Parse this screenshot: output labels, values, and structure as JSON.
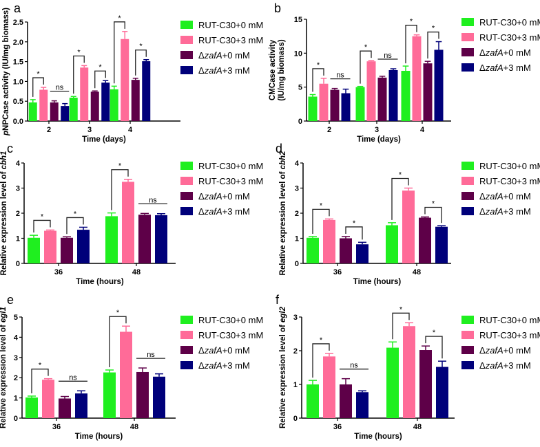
{
  "colors": {
    "RUT-C30+0 mM": "#1fef1f",
    "RUT-C30+3 mM": "#ff6b98",
    "dzafA+0 mM": "#5e0048",
    "dzafA+3 mM": "#00007a",
    "axis": "#000000"
  },
  "legend": [
    {
      "segments": [
        {
          "text": "RUT-C30+0 mM",
          "italic": false
        }
      ]
    },
    {
      "segments": [
        {
          "text": "RUT-C30+3 mM",
          "italic": false
        }
      ]
    },
    {
      "segments": [
        {
          "text": "Δ",
          "italic": false
        },
        {
          "text": "zafA",
          "italic": true
        },
        {
          "text": "+0 mM",
          "italic": false
        }
      ]
    },
    {
      "segments": [
        {
          "text": "Δ",
          "italic": false
        },
        {
          "text": "zafA",
          "italic": true
        },
        {
          "text": "+3 mM",
          "italic": false
        }
      ]
    }
  ],
  "chart_data": [
    {
      "panel": "a",
      "type": "bar",
      "categories": [
        "2",
        "3",
        "4"
      ],
      "xlabel": "Time (days)",
      "ylabel_lines": [
        [
          {
            "text": "p",
            "italic": true
          },
          {
            "text": "NPCase activity (IU/mg biomass)",
            "italic": false
          }
        ]
      ],
      "ylim": [
        0,
        2.5
      ],
      "yticks": [
        "0.0",
        "0.5",
        "1.0",
        "1.5",
        "2.0",
        "2.5"
      ],
      "series": [
        {
          "values": [
            0.47,
            0.59,
            0.8
          ],
          "errors": [
            0.07,
            0.03,
            0.08
          ]
        },
        {
          "values": [
            0.79,
            1.35,
            2.07
          ],
          "errors": [
            0.06,
            0.05,
            0.19
          ]
        },
        {
          "values": [
            0.47,
            0.74,
            1.04
          ],
          "errors": [
            0.04,
            0.02,
            0.04
          ]
        },
        {
          "values": [
            0.38,
            0.97,
            1.51
          ],
          "errors": [
            0.06,
            0.05,
            0.04
          ]
        }
      ],
      "significance": [
        {
          "group": 0,
          "pair": [
            0,
            1
          ],
          "label": "*"
        },
        {
          "group": 0,
          "pair": [
            2,
            3
          ],
          "label": "ns"
        },
        {
          "group": 1,
          "pair": [
            0,
            1
          ],
          "label": "*"
        },
        {
          "group": 1,
          "pair": [
            2,
            3
          ],
          "label": "*"
        },
        {
          "group": 2,
          "pair": [
            0,
            1
          ],
          "label": "*"
        },
        {
          "group": 2,
          "pair": [
            2,
            3
          ],
          "label": "*"
        }
      ]
    },
    {
      "panel": "b",
      "type": "bar",
      "categories": [
        "2",
        "3",
        "4"
      ],
      "xlabel": "Time (days)",
      "ylabel_lines": [
        [
          {
            "text": "CMCase activity",
            "italic": false
          }
        ],
        [
          {
            "text": "(IU/mg biomass)",
            "italic": false
          }
        ]
      ],
      "ylim": [
        0,
        15
      ],
      "yticks": [
        "0",
        "5",
        "10",
        "15"
      ],
      "series": [
        {
          "values": [
            3.6,
            5.0,
            7.4
          ],
          "errors": [
            0.3,
            0.1,
            0.7
          ]
        },
        {
          "values": [
            5.5,
            8.8,
            12.5
          ],
          "errors": [
            0.8,
            0.1,
            0.2
          ]
        },
        {
          "values": [
            4.6,
            6.4,
            8.5
          ],
          "errors": [
            0.2,
            0.2,
            0.3
          ]
        },
        {
          "values": [
            4.1,
            7.5,
            10.5
          ],
          "errors": [
            0.6,
            0.2,
            1.2
          ]
        }
      ],
      "significance": [
        {
          "group": 0,
          "pair": [
            0,
            1
          ],
          "label": "*"
        },
        {
          "group": 0,
          "pair": [
            2,
            3
          ],
          "label": "ns"
        },
        {
          "group": 1,
          "pair": [
            0,
            1
          ],
          "label": "*"
        },
        {
          "group": 1,
          "pair": [
            2,
            3
          ],
          "label": "ns"
        },
        {
          "group": 2,
          "pair": [
            0,
            1
          ],
          "label": "*"
        },
        {
          "group": 2,
          "pair": [
            2,
            3
          ],
          "label": "*"
        }
      ]
    },
    {
      "panel": "c",
      "type": "bar",
      "categories": [
        "36",
        "48"
      ],
      "xlabel": "Time (hours)",
      "ylabel_lines": [
        [
          {
            "text": "Relative expression level of ",
            "italic": false
          },
          {
            "text": "cbh1",
            "italic": true
          }
        ]
      ],
      "ylim": [
        0,
        4
      ],
      "yticks": [
        "0",
        "1",
        "2",
        "3",
        "4"
      ],
      "series": [
        {
          "values": [
            1.02,
            1.88
          ],
          "errors": [
            0.1,
            0.13
          ]
        },
        {
          "values": [
            1.3,
            3.25
          ],
          "errors": [
            0.03,
            0.1
          ]
        },
        {
          "values": [
            1.02,
            1.94
          ],
          "errors": [
            0.04,
            0.05
          ]
        },
        {
          "values": [
            1.34,
            1.92
          ],
          "errors": [
            0.1,
            0.06
          ]
        }
      ],
      "significance": [
        {
          "group": 0,
          "pair": [
            0,
            1
          ],
          "label": "*"
        },
        {
          "group": 0,
          "pair": [
            2,
            3
          ],
          "label": "*"
        },
        {
          "group": 1,
          "pair": [
            0,
            1
          ],
          "label": "*"
        },
        {
          "group": 1,
          "pair": [
            2,
            3
          ],
          "label": "ns"
        }
      ]
    },
    {
      "panel": "d",
      "type": "bar",
      "categories": [
        "36",
        "48"
      ],
      "xlabel": "Time (hours)",
      "ylabel_lines": [
        [
          {
            "text": "Relative expression level of ",
            "italic": false
          },
          {
            "text": "cbh2",
            "italic": true
          }
        ]
      ],
      "ylim": [
        0,
        4
      ],
      "yticks": [
        "0",
        "1",
        "2",
        "3",
        "4"
      ],
      "series": [
        {
          "values": [
            1.02,
            1.52
          ],
          "errors": [
            0.05,
            0.1
          ]
        },
        {
          "values": [
            1.73,
            2.9
          ],
          "errors": [
            0.04,
            0.1
          ]
        },
        {
          "values": [
            1.0,
            1.82
          ],
          "errors": [
            0.07,
            0.03
          ]
        },
        {
          "values": [
            0.76,
            1.46
          ],
          "errors": [
            0.08,
            0.04
          ]
        }
      ],
      "significance": [
        {
          "group": 0,
          "pair": [
            0,
            1
          ],
          "label": "*"
        },
        {
          "group": 0,
          "pair": [
            2,
            3
          ],
          "label": "*"
        },
        {
          "group": 1,
          "pair": [
            0,
            1
          ],
          "label": "*"
        },
        {
          "group": 1,
          "pair": [
            2,
            3
          ],
          "label": "*"
        }
      ]
    },
    {
      "panel": "e",
      "type": "bar",
      "categories": [
        "36",
        "48"
      ],
      "xlabel": "Time (hours)",
      "ylabel_lines": [
        [
          {
            "text": "Relative expression level of ",
            "italic": false
          },
          {
            "text": "egl1",
            "italic": true
          }
        ]
      ],
      "ylim": [
        0,
        5
      ],
      "yticks": [
        "0",
        "1",
        "2",
        "3",
        "4",
        "5"
      ],
      "series": [
        {
          "values": [
            1.02,
            2.26
          ],
          "errors": [
            0.07,
            0.12
          ]
        },
        {
          "values": [
            1.9,
            4.27
          ],
          "errors": [
            0.05,
            0.28
          ]
        },
        {
          "values": [
            0.97,
            2.28
          ],
          "errors": [
            0.1,
            0.2
          ]
        },
        {
          "values": [
            1.22,
            2.05
          ],
          "errors": [
            0.13,
            0.14
          ]
        }
      ],
      "significance": [
        {
          "group": 0,
          "pair": [
            0,
            1
          ],
          "label": "*"
        },
        {
          "group": 0,
          "pair": [
            2,
            3
          ],
          "label": "ns"
        },
        {
          "group": 1,
          "pair": [
            0,
            1
          ],
          "label": "*"
        },
        {
          "group": 1,
          "pair": [
            2,
            3
          ],
          "label": "ns"
        }
      ]
    },
    {
      "panel": "f",
      "type": "bar",
      "categories": [
        "36",
        "48"
      ],
      "xlabel": "Time (hours)",
      "ylabel_lines": [
        [
          {
            "text": "Relative expression level of ",
            "italic": false
          },
          {
            "text": "egl2",
            "italic": true
          }
        ]
      ],
      "ylim": [
        0,
        3
      ],
      "yticks": [
        "0",
        "1",
        "2",
        "3"
      ],
      "series": [
        {
          "values": [
            1.0,
            2.09
          ],
          "errors": [
            0.12,
            0.17
          ]
        },
        {
          "values": [
            1.83,
            2.73
          ],
          "errors": [
            0.09,
            0.1
          ]
        },
        {
          "values": [
            1.0,
            2.02
          ],
          "errors": [
            0.17,
            0.12
          ]
        },
        {
          "values": [
            0.77,
            1.52
          ],
          "errors": [
            0.04,
            0.17
          ]
        }
      ],
      "significance": [
        {
          "group": 0,
          "pair": [
            0,
            1
          ],
          "label": "*"
        },
        {
          "group": 0,
          "pair": [
            2,
            3
          ],
          "label": "ns"
        },
        {
          "group": 1,
          "pair": [
            0,
            1
          ],
          "label": "*"
        },
        {
          "group": 1,
          "pair": [
            2,
            3
          ],
          "label": "*"
        }
      ]
    }
  ]
}
